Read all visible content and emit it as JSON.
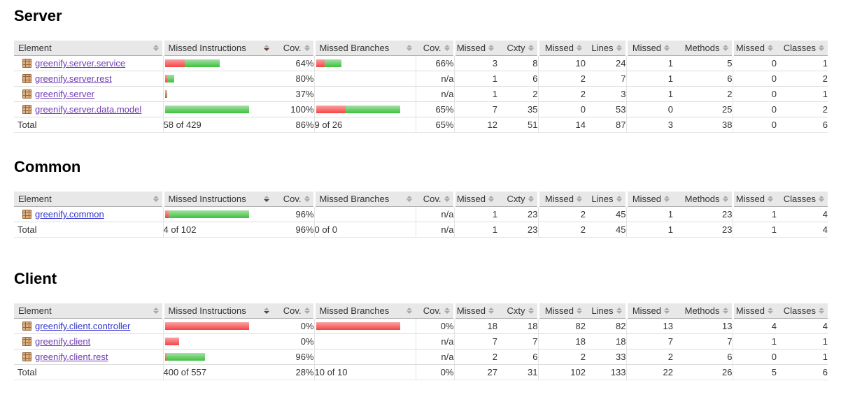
{
  "colors": {
    "header_bg": "#e8e8e8",
    "bar_red_top": "#f9a2a2",
    "bar_red_bottom": "#f64444",
    "bar_green_top": "#a8dfa8",
    "bar_green_bottom": "#3cc23c",
    "link_visited": "#703cb4",
    "link_new": "#3333cc"
  },
  "columns": [
    {
      "label": "Element",
      "sorted": false
    },
    {
      "label": "Missed Instructions",
      "sorted": true
    },
    {
      "label": "Cov.",
      "sorted": false
    },
    {
      "label": "Missed Branches",
      "sorted": false
    },
    {
      "label": "Cov.",
      "sorted": false
    },
    {
      "label": "Missed",
      "sorted": false
    },
    {
      "label": "Cxty",
      "sorted": false
    },
    {
      "label": "Missed",
      "sorted": false
    },
    {
      "label": "Lines",
      "sorted": false
    },
    {
      "label": "Missed",
      "sorted": false
    },
    {
      "label": "Methods",
      "sorted": false
    },
    {
      "label": "Missed",
      "sorted": false
    },
    {
      "label": "Classes",
      "sorted": false
    }
  ],
  "sections": [
    {
      "title": "Server",
      "rows": [
        {
          "name": "greenify.server.service",
          "link_style": "visited",
          "instr_bar": {
            "red": 28,
            "green": 50
          },
          "instr_cov": "64%",
          "branch_bar": {
            "red": 12,
            "green": 24
          },
          "branch_cov": "66%",
          "counters": [
            "3",
            "8",
            "10",
            "24",
            "1",
            "5",
            "0",
            "1"
          ]
        },
        {
          "name": "greenify.server.rest",
          "link_style": "visited",
          "instr_bar": {
            "red": 3,
            "green": 10
          },
          "instr_cov": "80%",
          "branch_bar": {
            "red": 0,
            "green": 0
          },
          "branch_cov": "n/a",
          "counters": [
            "1",
            "6",
            "2",
            "7",
            "1",
            "6",
            "0",
            "2"
          ]
        },
        {
          "name": "greenify.server",
          "link_style": "visited",
          "instr_bar": {
            "red": 2,
            "green": 1
          },
          "instr_cov": "37%",
          "branch_bar": {
            "red": 0,
            "green": 0
          },
          "branch_cov": "n/a",
          "counters": [
            "1",
            "2",
            "2",
            "3",
            "1",
            "2",
            "0",
            "1"
          ]
        },
        {
          "name": "greenify.server.data.model",
          "link_style": "visited",
          "instr_bar": {
            "red": 0,
            "green": 120
          },
          "instr_cov": "100%",
          "branch_bar": {
            "red": 42,
            "green": 78
          },
          "branch_cov": "65%",
          "counters": [
            "7",
            "35",
            "0",
            "53",
            "0",
            "25",
            "0",
            "2"
          ]
        }
      ],
      "total": {
        "label": "Total",
        "instr": "58 of 429",
        "instr_cov": "86%",
        "branch": "9 of 26",
        "branch_cov": "65%",
        "counters": [
          "12",
          "51",
          "14",
          "87",
          "3",
          "38",
          "0",
          "6"
        ]
      }
    },
    {
      "title": "Common",
      "rows": [
        {
          "name": "greenify.common",
          "link_style": "new",
          "instr_bar": {
            "red": 5,
            "green": 115
          },
          "instr_cov": "96%",
          "branch_bar": {
            "red": 0,
            "green": 0
          },
          "branch_cov": "n/a",
          "counters": [
            "1",
            "23",
            "2",
            "45",
            "1",
            "23",
            "1",
            "4"
          ]
        }
      ],
      "total": {
        "label": "Total",
        "instr": "4 of 102",
        "instr_cov": "96%",
        "branch": "0 of 0",
        "branch_cov": "n/a",
        "counters": [
          "1",
          "23",
          "2",
          "45",
          "1",
          "23",
          "1",
          "4"
        ]
      }
    },
    {
      "title": "Client",
      "rows": [
        {
          "name": "greenify.client.controller",
          "link_style": "new",
          "instr_bar": {
            "red": 120,
            "green": 0
          },
          "instr_cov": "0%",
          "branch_bar": {
            "red": 120,
            "green": 0
          },
          "branch_cov": "0%",
          "counters": [
            "18",
            "18",
            "82",
            "82",
            "13",
            "13",
            "4",
            "4"
          ]
        },
        {
          "name": "greenify.client",
          "link_style": "visited",
          "instr_bar": {
            "red": 20,
            "green": 0
          },
          "instr_cov": "0%",
          "branch_bar": {
            "red": 0,
            "green": 0
          },
          "branch_cov": "n/a",
          "counters": [
            "7",
            "7",
            "18",
            "18",
            "7",
            "7",
            "1",
            "1"
          ]
        },
        {
          "name": "greenify.client.rest",
          "link_style": "visited",
          "instr_bar": {
            "red": 2,
            "green": 55
          },
          "instr_cov": "96%",
          "branch_bar": {
            "red": 0,
            "green": 0
          },
          "branch_cov": "n/a",
          "counters": [
            "2",
            "6",
            "2",
            "33",
            "2",
            "6",
            "0",
            "1"
          ]
        }
      ],
      "total": {
        "label": "Total",
        "instr": "400 of 557",
        "instr_cov": "28%",
        "branch": "10 of 10",
        "branch_cov": "0%",
        "counters": [
          "27",
          "31",
          "102",
          "133",
          "22",
          "26",
          "5",
          "6"
        ]
      }
    }
  ]
}
